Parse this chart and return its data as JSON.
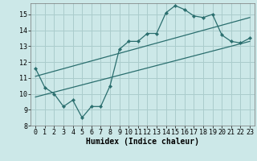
{
  "xlabel": "Humidex (Indice chaleur)",
  "bg_color": "#cce8e8",
  "grid_color": "#aacccc",
  "line_color": "#2a6e6e",
  "xlim": [
    -0.5,
    23.5
  ],
  "ylim": [
    8,
    15.7
  ],
  "yticks": [
    8,
    9,
    10,
    11,
    12,
    13,
    14,
    15
  ],
  "xticks": [
    0,
    1,
    2,
    3,
    4,
    5,
    6,
    7,
    8,
    9,
    10,
    11,
    12,
    13,
    14,
    15,
    16,
    17,
    18,
    19,
    20,
    21,
    22,
    23
  ],
  "line1_x": [
    0,
    1,
    2,
    3,
    4,
    5,
    6,
    7,
    8,
    9,
    10,
    11,
    12,
    13,
    14,
    15,
    16,
    17,
    18,
    19,
    20,
    21,
    22,
    23
  ],
  "line1_y": [
    11.6,
    10.4,
    10.0,
    9.2,
    9.6,
    8.5,
    9.2,
    9.2,
    10.5,
    12.8,
    13.3,
    13.3,
    13.8,
    13.8,
    15.1,
    15.55,
    15.3,
    14.9,
    14.8,
    15.0,
    13.7,
    13.3,
    13.2,
    13.5
  ],
  "line2_x": [
    0,
    23
  ],
  "line2_y": [
    11.1,
    14.8
  ],
  "line3_x": [
    0,
    23
  ],
  "line3_y": [
    9.8,
    13.3
  ],
  "tick_fontsize": 6.0,
  "xlabel_fontsize": 7.0
}
